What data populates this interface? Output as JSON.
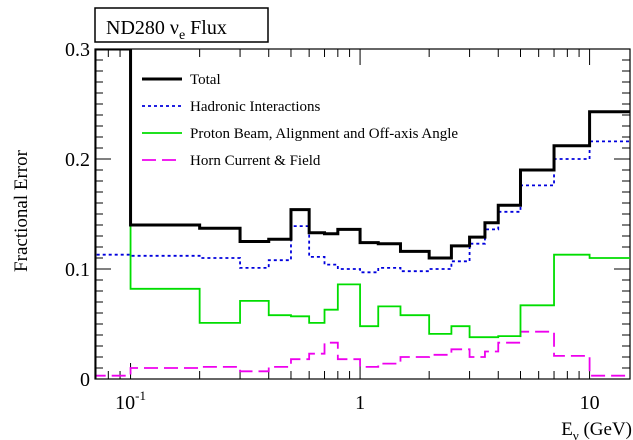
{
  "chart_data": {
    "type": "line",
    "step": true,
    "title": "ND280 ν",
    "title_sub": "e",
    "title_rest": " Flux",
    "ylabel": "Fractional Error",
    "xlabel": "E",
    "xlabel_sub": "ν",
    "xlabel_rest": " (GeV)",
    "xscale": "log",
    "xlim": [
      0.07,
      15
    ],
    "ylim": [
      0,
      0.3
    ],
    "x_tick_labels": [
      {
        "value": 0.1,
        "base": "10",
        "exp": "-1"
      },
      {
        "value": 1,
        "base": "1",
        "exp": ""
      },
      {
        "value": 10,
        "base": "10",
        "exp": ""
      }
    ],
    "y_ticks": [
      0,
      0.1,
      0.2,
      0.3
    ],
    "y_tick_labels": [
      "0",
      "0.1",
      "0.2",
      "0.3"
    ],
    "legend_position": "top-left",
    "bin_edges": [
      0.07,
      0.1,
      0.2,
      0.3,
      0.4,
      0.5,
      0.6,
      0.7,
      0.8,
      1.0,
      1.2,
      1.5,
      2.0,
      2.5,
      3.0,
      3.5,
      4.0,
      5.0,
      7.0,
      10.0,
      15.0
    ],
    "series": [
      {
        "name": "Total",
        "color": "#000000",
        "dash": "",
        "values": [
          0.3,
          0.14,
          0.137,
          0.125,
          0.127,
          0.154,
          0.133,
          0.132,
          0.136,
          0.124,
          0.123,
          0.116,
          0.11,
          0.121,
          0.129,
          0.142,
          0.158,
          0.19,
          0.212,
          0.243
        ]
      },
      {
        "name": "Hadronic Interactions",
        "color": "#0000dd",
        "dash": "3,3",
        "values": [
          0.113,
          0.112,
          0.11,
          0.101,
          0.108,
          0.139,
          0.111,
          0.104,
          0.1,
          0.097,
          0.101,
          0.098,
          0.1,
          0.107,
          0.123,
          0.136,
          0.152,
          0.176,
          0.2,
          0.216
        ]
      },
      {
        "name": "Proton Beam, Alignment and Off-axis Angle",
        "color": "#00dd00",
        "dash": "",
        "values": [
          0.3,
          0.082,
          0.051,
          0.071,
          0.058,
          0.057,
          0.051,
          0.063,
          0.086,
          0.048,
          0.066,
          0.058,
          0.041,
          0.048,
          0.038,
          0.038,
          0.039,
          0.067,
          0.113,
          0.11
        ]
      },
      {
        "name": "Horn Current & Field",
        "color": "#ee00ee",
        "dash": "14,6",
        "values": [
          0.003,
          0.01,
          0.011,
          0.007,
          0.011,
          0.018,
          0.023,
          0.033,
          0.018,
          0.011,
          0.014,
          0.02,
          0.022,
          0.027,
          0.02,
          0.025,
          0.033,
          0.043,
          0.021,
          0.003
        ]
      }
    ]
  }
}
